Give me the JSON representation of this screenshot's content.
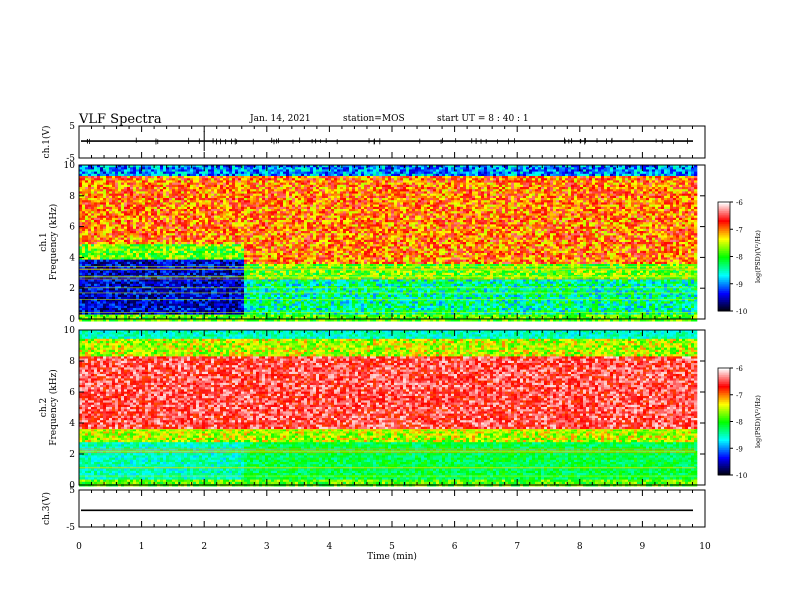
{
  "header": {
    "title": "VLF Spectra",
    "date": "Jan. 14, 2021",
    "station": "station=MOS",
    "start": "start  UT =   8 : 40 : 1"
  },
  "colors": {
    "frame": "#000000",
    "background": "#ffffff",
    "colormap": [
      "#000000",
      "#0000ff",
      "#00ffff",
      "#00ff00",
      "#ffff00",
      "#ff0000",
      "#ffffff"
    ]
  },
  "chart_data": [
    {
      "type": "line",
      "panel": "ch1-waveform",
      "ylabel": "ch.1(V)",
      "ylim": [
        -5,
        5
      ],
      "yticks": [
        "5",
        "-5"
      ],
      "xlim": [
        0,
        10
      ],
      "series": [
        {
          "values": [
            0.3,
            0.3
          ]
        }
      ]
    },
    {
      "type": "heatmap",
      "panel": "ch1-spectrogram",
      "ylabel": "ch.1\nFrequency (kHz)",
      "ylim": [
        0,
        10
      ],
      "yticks": [
        "0",
        "2",
        "4",
        "6",
        "8",
        "10"
      ],
      "xlim": [
        0,
        9.85
      ],
      "colorbar": {
        "label": "log(PSD)(V²/Hz)",
        "ticks": [
          "-6",
          "-7",
          "-8",
          "-9",
          "-10"
        ],
        "range": [
          -10,
          -6
        ]
      },
      "segments": [
        {
          "t": [
            0,
            2.6
          ],
          "quiet_below_khz": 4.3
        },
        {
          "t": [
            2.6,
            9.85
          ],
          "quiet_below_khz": 3.0
        }
      ]
    },
    {
      "type": "heatmap",
      "panel": "ch2-spectrogram",
      "ylabel": "ch.2\nFrequency (kHz)",
      "ylim": [
        0,
        10
      ],
      "yticks": [
        "0",
        "2",
        "4",
        "6",
        "8",
        "10"
      ],
      "xlim": [
        0,
        9.85
      ],
      "colorbar": {
        "label": "log(PSD)(V²/Hz)",
        "ticks": [
          "-6",
          "-7",
          "-8",
          "-9",
          "-10"
        ],
        "range": [
          -10,
          -6
        ]
      },
      "band_khz": [
        3.7,
        8.3
      ]
    },
    {
      "type": "line",
      "panel": "ch3-waveform",
      "ylabel": "ch.3(V)",
      "ylim": [
        -5,
        5
      ],
      "yticks": [
        "5",
        "-5"
      ],
      "xlim": [
        0,
        10
      ],
      "series": [
        {
          "values": [
            -0.5,
            -0.5
          ]
        }
      ]
    }
  ],
  "xaxis": {
    "label": "Time (min)",
    "ticks": [
      "0",
      "1",
      "2",
      "3",
      "4",
      "5",
      "6",
      "7",
      "8",
      "9",
      "10"
    ],
    "range": [
      0,
      10
    ]
  }
}
